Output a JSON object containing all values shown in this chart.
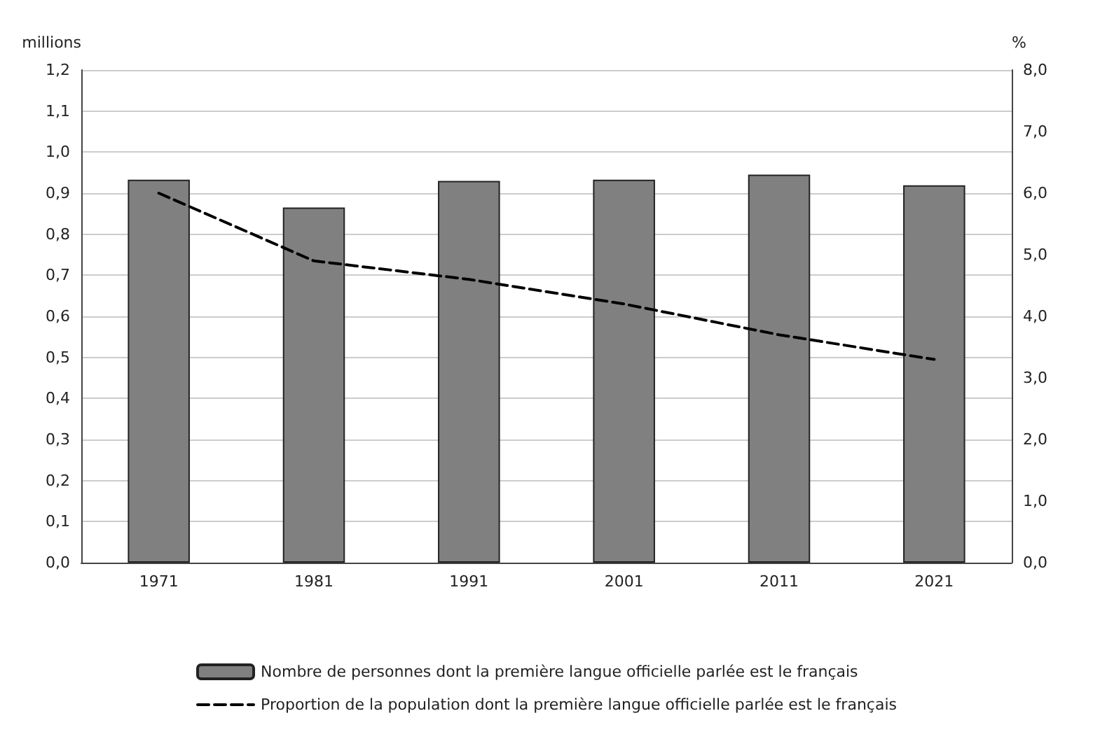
{
  "chart_data": {
    "type": "bar",
    "ylabel": "millions",
    "y2label": "%",
    "categories": [
      "1971",
      "1981",
      "1991",
      "2001",
      "2011",
      "2021"
    ],
    "series": [
      {
        "name": "Nombre de personnes dont la première langue officielle parlée est le français",
        "color": "#808080",
        "values": [
          0.933,
          0.865,
          0.93,
          0.933,
          0.945,
          0.919
        ]
      },
      {
        "name": "Proportion de la population dont la première langue officielle parlée est le français",
        "type": "line",
        "axis": "y2",
        "color": "#000000",
        "line_style": "dashed",
        "marker": "none",
        "values": [
          6.0,
          4.9,
          4.6,
          4.2,
          3.7,
          3.3
        ]
      }
    ],
    "ylim": [
      0,
      1.2
    ],
    "yticks": [
      {
        "value": 0,
        "label": "0,0"
      },
      {
        "value": 0.1,
        "label": "0,1"
      },
      {
        "value": 0.2,
        "label": "0,2"
      },
      {
        "value": 0.3,
        "label": "0,3"
      },
      {
        "value": 0.4,
        "label": "0,4"
      },
      {
        "value": 0.5,
        "label": "0,5"
      },
      {
        "value": 0.6,
        "label": "0,6"
      },
      {
        "value": 0.7,
        "label": "0,7"
      },
      {
        "value": 0.8,
        "label": "0,8"
      },
      {
        "value": 0.9,
        "label": "0,9"
      },
      {
        "value": 1,
        "label": "1,0"
      },
      {
        "value": 1.1,
        "label": "1,1"
      },
      {
        "value": 1.2,
        "label": "1,2"
      }
    ],
    "y2lim": [
      0,
      8
    ],
    "y2ticks": [
      {
        "value": 0,
        "label": "0,0"
      },
      {
        "value": 1,
        "label": "1,0"
      },
      {
        "value": 2,
        "label": "2,0"
      },
      {
        "value": 3,
        "label": "3,0"
      },
      {
        "value": 4,
        "label": "4,0"
      },
      {
        "value": 5,
        "label": "5,0"
      },
      {
        "value": 6,
        "label": "6,0"
      },
      {
        "value": 7,
        "label": "7,0"
      },
      {
        "value": 8,
        "label": "8,0"
      }
    ],
    "grid": "y",
    "legend": "bottom"
  }
}
